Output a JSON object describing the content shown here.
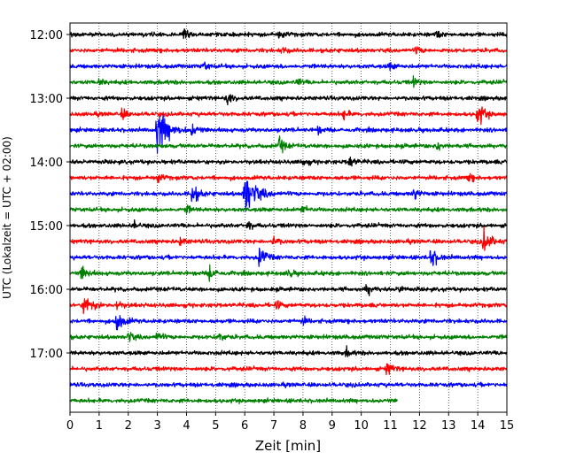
{
  "chart_data": {
    "type": "line",
    "title": "",
    "xlabel": "Zeit  [min]",
    "ylabel": "UTC (Lokalzeit = UTC + 02:00)",
    "xlim": [
      0,
      15
    ],
    "x_ticks": [
      0,
      1,
      2,
      3,
      4,
      5,
      6,
      7,
      8,
      9,
      10,
      11,
      12,
      13,
      14,
      15
    ],
    "x_tick_labels": [
      "0",
      "1",
      "2",
      "3",
      "4",
      "5",
      "6",
      "7",
      "8",
      "9",
      "10",
      "11",
      "12",
      "13",
      "14",
      "15"
    ],
    "y_tick_labels": [
      "12:00",
      "13:00",
      "14:00",
      "15:00",
      "16:00",
      "17:00"
    ],
    "grid": "vertical dotted",
    "trace_colors": [
      "#000000",
      "#ff0000",
      "#0000ff",
      "#008000"
    ],
    "trace_interval_minutes": 15,
    "traces": [
      {
        "start": "12:00",
        "end_min": 15,
        "events": [
          {
            "t": 3.9,
            "amp": 0.5
          },
          {
            "t": 7.2,
            "amp": 0.35
          },
          {
            "t": 12.6,
            "amp": 0.3
          }
        ]
      },
      {
        "start": "12:15",
        "end_min": 15,
        "events": [
          {
            "t": 7.3,
            "amp": 0.3
          },
          {
            "t": 11.9,
            "amp": 0.3
          }
        ]
      },
      {
        "start": "12:30",
        "end_min": 15,
        "events": [
          {
            "t": 4.6,
            "amp": 0.35
          },
          {
            "t": 11.0,
            "amp": 0.3
          }
        ]
      },
      {
        "start": "12:45",
        "end_min": 15,
        "events": [
          {
            "t": 1.0,
            "amp": 0.3
          },
          {
            "t": 7.8,
            "amp": 0.3
          },
          {
            "t": 11.8,
            "amp": 0.35
          }
        ]
      },
      {
        "start": "13:00",
        "end_min": 15,
        "events": [
          {
            "t": 5.4,
            "amp": 0.5
          }
        ]
      },
      {
        "start": "13:15",
        "end_min": 15,
        "events": [
          {
            "t": 1.8,
            "amp": 0.4
          },
          {
            "t": 9.4,
            "amp": 0.35
          },
          {
            "t": 14.0,
            "amp": 0.9
          }
        ]
      },
      {
        "start": "13:30",
        "end_min": 15,
        "events": [
          {
            "t": 3.0,
            "amp": 1.9
          },
          {
            "t": 4.2,
            "amp": 0.5
          },
          {
            "t": 8.5,
            "amp": 0.3
          }
        ]
      },
      {
        "start": "13:45",
        "end_min": 15,
        "events": [
          {
            "t": 7.2,
            "amp": 0.6
          },
          {
            "t": 12.6,
            "amp": 0.4
          }
        ]
      },
      {
        "start": "14:00",
        "end_min": 15,
        "events": [
          {
            "t": 8.0,
            "amp": 0.35
          },
          {
            "t": 9.6,
            "amp": 0.5
          }
        ]
      },
      {
        "start": "14:15",
        "end_min": 15,
        "events": [
          {
            "t": 3.0,
            "amp": 0.4
          },
          {
            "t": 13.7,
            "amp": 0.3
          }
        ]
      },
      {
        "start": "14:30",
        "end_min": 15,
        "events": [
          {
            "t": 4.2,
            "amp": 0.8
          },
          {
            "t": 6.0,
            "amp": 1.9
          },
          {
            "t": 11.8,
            "amp": 0.5
          }
        ]
      },
      {
        "start": "14:45",
        "end_min": 15,
        "events": [
          {
            "t": 4.0,
            "amp": 0.3
          },
          {
            "t": 8.0,
            "amp": 0.35
          }
        ]
      },
      {
        "start": "15:00",
        "end_min": 15,
        "events": [
          {
            "t": 2.2,
            "amp": 0.3
          },
          {
            "t": 6.1,
            "amp": 0.4
          }
        ]
      },
      {
        "start": "15:15",
        "end_min": 15,
        "events": [
          {
            "t": 3.8,
            "amp": 0.35
          },
          {
            "t": 7.0,
            "amp": 0.4
          },
          {
            "t": 14.2,
            "amp": 1.0
          }
        ]
      },
      {
        "start": "15:30",
        "end_min": 15,
        "events": [
          {
            "t": 6.5,
            "amp": 0.8
          },
          {
            "t": 12.4,
            "amp": 0.8
          }
        ]
      },
      {
        "start": "15:45",
        "end_min": 15,
        "events": [
          {
            "t": 0.4,
            "amp": 0.6
          },
          {
            "t": 4.8,
            "amp": 0.6
          },
          {
            "t": 7.5,
            "amp": 0.35
          }
        ]
      },
      {
        "start": "16:00",
        "end_min": 15,
        "events": [
          {
            "t": 10.2,
            "amp": 0.5
          },
          {
            "t": 11.3,
            "amp": 0.3
          }
        ]
      },
      {
        "start": "16:15",
        "end_min": 15,
        "events": [
          {
            "t": 0.5,
            "amp": 1.0
          },
          {
            "t": 1.6,
            "amp": 0.4
          },
          {
            "t": 7.1,
            "amp": 0.3
          }
        ]
      },
      {
        "start": "16:30",
        "end_min": 15,
        "events": [
          {
            "t": 1.6,
            "amp": 0.9
          },
          {
            "t": 8.0,
            "amp": 0.3
          }
        ]
      },
      {
        "start": "16:45",
        "end_min": 15,
        "events": [
          {
            "t": 2.0,
            "amp": 0.5
          },
          {
            "t": 3.0,
            "amp": 0.4
          },
          {
            "t": 5.1,
            "amp": 0.4
          }
        ]
      },
      {
        "start": "17:00",
        "end_min": 15,
        "events": [
          {
            "t": 9.5,
            "amp": 0.3
          }
        ]
      },
      {
        "start": "17:15",
        "end_min": 15,
        "events": [
          {
            "t": 10.9,
            "amp": 0.5
          }
        ]
      },
      {
        "start": "17:30",
        "end_min": 15,
        "events": []
      },
      {
        "start": "17:45",
        "end_min": 11.25,
        "events": []
      }
    ]
  }
}
